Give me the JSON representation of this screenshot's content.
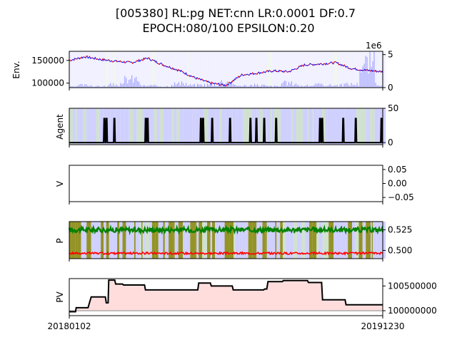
{
  "title_line1": "[005380] RL:pg NET:cnn LR:0.0001 DF:0.7",
  "title_line2": "EPOCH:080/100 EPSILON:0.20",
  "chart_data": [
    {
      "id": "env",
      "type": "line",
      "ylabel": "Env.",
      "ylim": [
        90000,
        170000
      ],
      "yticks": [
        "150000",
        "100000"
      ],
      "ytick_values": [
        150000,
        100000
      ],
      "right_axis": {
        "label_offset": "1e6",
        "ticks": [
          "5",
          "0"
        ],
        "tick_values": [
          5,
          0
        ],
        "ylim": [
          0,
          5.5
        ]
      },
      "x": [
        0,
        5,
        10,
        15,
        20,
        25,
        30,
        35,
        40,
        45,
        50,
        55,
        60,
        65,
        70,
        75,
        80,
        85,
        90,
        95,
        100
      ],
      "series": [
        {
          "values": [
            150000,
            158000,
            152000,
            148000,
            145000,
            155000,
            140000,
            128000,
            112000,
            100000,
            95000,
            118000,
            122000,
            127000,
            125000,
            140000,
            142000,
            145000,
            132000,
            128000,
            125000
          ]
        }
      ],
      "volume_series": [
        0.2,
        0.5,
        0.3,
        0.6,
        1.7,
        0.4,
        0.3,
        0.8,
        0.5,
        0.6,
        1.2,
        0.4,
        0.5,
        0.3,
        0.9,
        0.4,
        0.6,
        0.5,
        0.7,
        4.8,
        0.8
      ]
    },
    {
      "id": "agent",
      "type": "line",
      "ylabel": "Agent",
      "ylim": [
        -3,
        50
      ],
      "yticks": [
        "50",
        "0"
      ],
      "ytick_values": [
        50,
        0
      ],
      "spikes_at": [
        11.2,
        11.9,
        14.4,
        24.4,
        25.0,
        42.0,
        42.7,
        45.6,
        51.3,
        57.8,
        59.7,
        62.2,
        66.0,
        80.0,
        80.7,
        87.4,
        91.4,
        99.6
      ],
      "spike_height": 35
    },
    {
      "id": "v",
      "type": "line",
      "ylabel": "V",
      "ylim": [
        -0.065,
        0.065
      ],
      "yticks": [
        "0.05",
        "0.00",
        "−0.05"
      ],
      "ytick_values": [
        0.05,
        0.0,
        -0.05
      ]
    },
    {
      "id": "p",
      "type": "line",
      "ylabel": "P",
      "ylim": [
        0.49,
        0.535
      ],
      "yticks": [
        "0.525",
        "0.500"
      ],
      "ytick_values": [
        0.525,
        0.5
      ],
      "series": [
        {
          "name": "",
          "level": 0.525
        },
        {
          "name": "",
          "level": 0.4965
        }
      ]
    },
    {
      "id": "pv",
      "type": "line",
      "ylabel": "PV",
      "ylim": [
        99900000,
        100650000
      ],
      "yticks": [
        "100500000",
        "100000000"
      ],
      "ytick_values": [
        100500000,
        100000000
      ],
      "baseline": 100000000,
      "x": [
        0,
        2,
        2.2,
        6,
        7,
        11.5,
        11.8,
        12.4,
        12.6,
        14.5,
        14.8,
        17,
        17.3,
        24,
        24.3,
        41,
        41.3,
        45,
        45.3,
        52,
        52.3,
        62,
        62.3,
        63,
        63.4,
        68,
        68.3,
        76,
        76.3,
        80.5,
        80.8,
        88,
        88.3,
        100
      ],
      "values": [
        99980000,
        99980000,
        100060000,
        100060000,
        100280000,
        100280000,
        100160000,
        100160000,
        100620000,
        100620000,
        100540000,
        100540000,
        100520000,
        100520000,
        100420000,
        100420000,
        100560000,
        100560000,
        100500000,
        100500000,
        100420000,
        100420000,
        100440000,
        100440000,
        100590000,
        100590000,
        100610000,
        100610000,
        100570000,
        100570000,
        100220000,
        100220000,
        100120000,
        100120000
      ]
    }
  ],
  "x_ticks": [
    "20180102",
    "20191230"
  ],
  "colors": {
    "env_line_a": "#ff0000",
    "env_line_b": "#0000ff",
    "volume": "#8080ff",
    "agent_line": "#000000",
    "p_green": "#008000",
    "p_red": "#ff0000",
    "p_olive": "#808000",
    "pv_line": "#000000",
    "pv_fill": "#ffdddd",
    "band_blue": "#c8c8ff",
    "band_green": "#c8dcc8"
  }
}
